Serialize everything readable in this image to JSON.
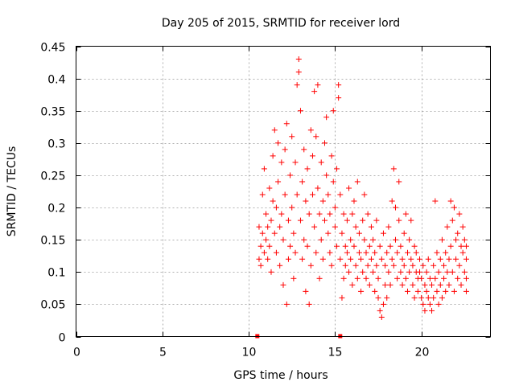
{
  "chart_data": {
    "type": "scatter",
    "title": "Day 205 of 2015, SRMTID for receiver lord",
    "xlabel": "GPS time / hours",
    "ylabel": "SRMTID / TECUs",
    "xlim": [
      0,
      24
    ],
    "ylim": [
      0,
      0.45
    ],
    "grid": true,
    "marker": "plus",
    "color": "#ff0000",
    "x_ticks": [
      "0",
      "5",
      "10",
      "15",
      "20"
    ],
    "x_tick_values": [
      0,
      5,
      10,
      15,
      20
    ],
    "y_ticks": [
      "0",
      "0.05",
      "0.1",
      "0.15",
      "0.2",
      "0.25",
      "0.3",
      "0.35",
      "0.4",
      "0.45"
    ],
    "y_tick_values": [
      0,
      0.05,
      0.1,
      0.15,
      0.2,
      0.25,
      0.3,
      0.35,
      0.4,
      0.45
    ],
    "series": [
      {
        "name": "SRMTID",
        "points": [
          [
            10.6,
            0.12
          ],
          [
            10.6,
            0.17
          ],
          [
            10.7,
            0.14
          ],
          [
            10.7,
            0.11
          ],
          [
            10.8,
            0.16
          ],
          [
            10.8,
            0.22
          ],
          [
            10.9,
            0.13
          ],
          [
            10.9,
            0.26
          ],
          [
            11.0,
            0.15
          ],
          [
            11.0,
            0.19
          ],
          [
            11.1,
            0.12
          ],
          [
            11.1,
            0.17
          ],
          [
            11.2,
            0.23
          ],
          [
            11.2,
            0.14
          ],
          [
            11.3,
            0.1
          ],
          [
            11.3,
            0.18
          ],
          [
            11.4,
            0.21
          ],
          [
            11.4,
            0.28
          ],
          [
            11.5,
            0.32
          ],
          [
            11.5,
            0.16
          ],
          [
            11.6,
            0.13
          ],
          [
            11.6,
            0.2
          ],
          [
            11.7,
            0.24
          ],
          [
            11.7,
            0.3
          ],
          [
            11.8,
            0.17
          ],
          [
            11.8,
            0.11
          ],
          [
            11.9,
            0.27
          ],
          [
            11.9,
            0.19
          ],
          [
            12.0,
            0.08
          ],
          [
            12.0,
            0.15
          ],
          [
            12.1,
            0.22
          ],
          [
            12.1,
            0.29
          ],
          [
            12.2,
            0.33
          ],
          [
            12.2,
            0.05
          ],
          [
            12.3,
            0.18
          ],
          [
            12.3,
            0.12
          ],
          [
            12.4,
            0.25
          ],
          [
            12.4,
            0.14
          ],
          [
            12.5,
            0.2
          ],
          [
            12.5,
            0.31
          ],
          [
            12.6,
            0.09
          ],
          [
            12.6,
            0.16
          ],
          [
            12.7,
            0.27
          ],
          [
            12.7,
            0.13
          ],
          [
            12.8,
            0.22
          ],
          [
            12.8,
            0.39
          ],
          [
            12.9,
            0.43
          ],
          [
            12.9,
            0.41
          ],
          [
            13.0,
            0.35
          ],
          [
            13.0,
            0.18
          ],
          [
            13.1,
            0.24
          ],
          [
            13.1,
            0.12
          ],
          [
            13.2,
            0.29
          ],
          [
            13.2,
            0.15
          ],
          [
            13.3,
            0.21
          ],
          [
            13.3,
            0.07
          ],
          [
            13.4,
            0.26
          ],
          [
            13.4,
            0.14
          ],
          [
            13.5,
            0.19
          ],
          [
            13.5,
            0.05
          ],
          [
            13.6,
            0.32
          ],
          [
            13.6,
            0.11
          ],
          [
            13.7,
            0.22
          ],
          [
            13.7,
            0.28
          ],
          [
            13.8,
            0.17
          ],
          [
            13.8,
            0.38
          ],
          [
            13.9,
            0.31
          ],
          [
            13.9,
            0.13
          ],
          [
            14.0,
            0.39
          ],
          [
            14.0,
            0.23
          ],
          [
            14.1,
            0.19
          ],
          [
            14.1,
            0.09
          ],
          [
            14.2,
            0.27
          ],
          [
            14.2,
            0.15
          ],
          [
            14.3,
            0.21
          ],
          [
            14.3,
            0.12
          ],
          [
            14.4,
            0.3
          ],
          [
            14.4,
            0.18
          ],
          [
            14.5,
            0.25
          ],
          [
            14.5,
            0.34
          ],
          [
            14.6,
            0.16
          ],
          [
            14.6,
            0.22
          ],
          [
            14.7,
            0.13
          ],
          [
            14.7,
            0.19
          ],
          [
            14.8,
            0.28
          ],
          [
            14.8,
            0.11
          ],
          [
            14.9,
            0.24
          ],
          [
            14.9,
            0.35
          ],
          [
            15.0,
            0.17
          ],
          [
            15.0,
            0.2
          ],
          [
            15.1,
            0.14
          ],
          [
            15.1,
            0.26
          ],
          [
            15.2,
            0.39
          ],
          [
            15.2,
            0.37
          ],
          [
            15.3,
            0.12
          ],
          [
            15.3,
            0.22
          ],
          [
            15.4,
            0.16
          ],
          [
            15.4,
            0.06
          ],
          [
            15.5,
            0.19
          ],
          [
            15.5,
            0.09
          ],
          [
            15.6,
            0.14
          ],
          [
            15.6,
            0.11
          ],
          [
            15.7,
            0.18
          ],
          [
            15.7,
            0.13
          ],
          [
            15.8,
            0.23
          ],
          [
            15.8,
            0.1
          ],
          [
            15.9,
            0.15
          ],
          [
            15.9,
            0.12
          ],
          [
            16.0,
            0.19
          ],
          [
            16.0,
            0.08
          ],
          [
            16.1,
            0.14
          ],
          [
            16.1,
            0.21
          ],
          [
            16.2,
            0.11
          ],
          [
            16.2,
            0.17
          ],
          [
            16.3,
            0.09
          ],
          [
            16.3,
            0.24
          ],
          [
            16.4,
            0.13
          ],
          [
            16.4,
            0.16
          ],
          [
            16.5,
            0.07
          ],
          [
            16.5,
            0.12
          ],
          [
            16.6,
            0.18
          ],
          [
            16.6,
            0.1
          ],
          [
            16.7,
            0.15
          ],
          [
            16.7,
            0.22
          ],
          [
            16.8,
            0.09
          ],
          [
            16.8,
            0.13
          ],
          [
            16.9,
            0.19
          ],
          [
            16.9,
            0.11
          ],
          [
            17.0,
            0.14
          ],
          [
            17.0,
            0.08
          ],
          [
            17.1,
            0.17
          ],
          [
            17.1,
            0.12
          ],
          [
            17.2,
            0.1
          ],
          [
            17.2,
            0.15
          ],
          [
            17.3,
            0.07
          ],
          [
            17.3,
            0.13
          ],
          [
            17.4,
            0.11
          ],
          [
            17.4,
            0.18
          ],
          [
            17.5,
            0.06
          ],
          [
            17.5,
            0.09
          ],
          [
            17.6,
            0.04
          ],
          [
            17.6,
            0.14
          ],
          [
            17.7,
            0.03
          ],
          [
            17.7,
            0.12
          ],
          [
            17.8,
            0.05
          ],
          [
            17.8,
            0.16
          ],
          [
            17.9,
            0.08
          ],
          [
            17.9,
            0.11
          ],
          [
            18.0,
            0.13
          ],
          [
            18.0,
            0.06
          ],
          [
            18.1,
            0.1
          ],
          [
            18.1,
            0.17
          ],
          [
            18.2,
            0.14
          ],
          [
            18.2,
            0.08
          ],
          [
            18.3,
            0.12
          ],
          [
            18.3,
            0.21
          ],
          [
            18.4,
            0.26
          ],
          [
            18.4,
            0.11
          ],
          [
            18.5,
            0.2
          ],
          [
            18.5,
            0.15
          ],
          [
            18.6,
            0.09
          ],
          [
            18.6,
            0.13
          ],
          [
            18.7,
            0.24
          ],
          [
            18.7,
            0.18
          ],
          [
            18.8,
            0.1
          ],
          [
            18.8,
            0.14
          ],
          [
            18.9,
            0.08
          ],
          [
            18.9,
            0.12
          ],
          [
            19.0,
            0.16
          ],
          [
            19.0,
            0.11
          ],
          [
            19.1,
            0.19
          ],
          [
            19.1,
            0.09
          ],
          [
            19.2,
            0.13
          ],
          [
            19.2,
            0.07
          ],
          [
            19.3,
            0.15
          ],
          [
            19.3,
            0.1
          ],
          [
            19.4,
            0.12
          ],
          [
            19.4,
            0.18
          ],
          [
            19.5,
            0.08
          ],
          [
            19.5,
            0.11
          ],
          [
            19.6,
            0.14
          ],
          [
            19.6,
            0.06
          ],
          [
            19.7,
            0.1
          ],
          [
            19.7,
            0.13
          ],
          [
            19.8,
            0.09
          ],
          [
            19.8,
            0.07
          ],
          [
            19.9,
            0.12
          ],
          [
            19.9,
            0.1
          ],
          [
            20.0,
            0.06
          ],
          [
            20.0,
            0.09
          ],
          [
            20.1,
            0.05
          ],
          [
            20.1,
            0.11
          ],
          [
            20.2,
            0.04
          ],
          [
            20.2,
            0.08
          ],
          [
            20.3,
            0.07
          ],
          [
            20.3,
            0.1
          ],
          [
            20.4,
            0.06
          ],
          [
            20.4,
            0.12
          ],
          [
            20.5,
            0.09
          ],
          [
            20.5,
            0.05
          ],
          [
            20.6,
            0.04
          ],
          [
            20.6,
            0.08
          ],
          [
            20.7,
            0.11
          ],
          [
            20.7,
            0.06
          ],
          [
            20.8,
            0.09
          ],
          [
            20.8,
            0.21
          ],
          [
            20.9,
            0.07
          ],
          [
            20.9,
            0.13
          ],
          [
            21.0,
            0.1
          ],
          [
            21.0,
            0.05
          ],
          [
            21.1,
            0.08
          ],
          [
            21.1,
            0.12
          ],
          [
            21.2,
            0.06
          ],
          [
            21.2,
            0.15
          ],
          [
            21.3,
            0.09
          ],
          [
            21.3,
            0.11
          ],
          [
            21.4,
            0.07
          ],
          [
            21.4,
            0.13
          ],
          [
            21.5,
            0.1
          ],
          [
            21.5,
            0.17
          ],
          [
            21.6,
            0.12
          ],
          [
            21.6,
            0.08
          ],
          [
            21.7,
            0.21
          ],
          [
            21.7,
            0.14
          ],
          [
            21.8,
            0.1
          ],
          [
            21.8,
            0.18
          ],
          [
            21.9,
            0.2
          ],
          [
            21.9,
            0.07
          ],
          [
            22.0,
            0.12
          ],
          [
            22.0,
            0.15
          ],
          [
            22.1,
            0.09
          ],
          [
            22.1,
            0.16
          ],
          [
            22.2,
            0.11
          ],
          [
            22.2,
            0.19
          ],
          [
            22.3,
            0.14
          ],
          [
            22.3,
            0.08
          ],
          [
            22.4,
            0.13
          ],
          [
            22.4,
            0.17
          ],
          [
            22.5,
            0.1
          ],
          [
            22.5,
            0.15
          ],
          [
            22.6,
            0.07
          ],
          [
            22.6,
            0.12
          ],
          [
            22.6,
            0.09
          ],
          [
            22.6,
            0.14
          ]
        ]
      }
    ],
    "axis_markers": [
      10.5,
      15.3
    ]
  }
}
